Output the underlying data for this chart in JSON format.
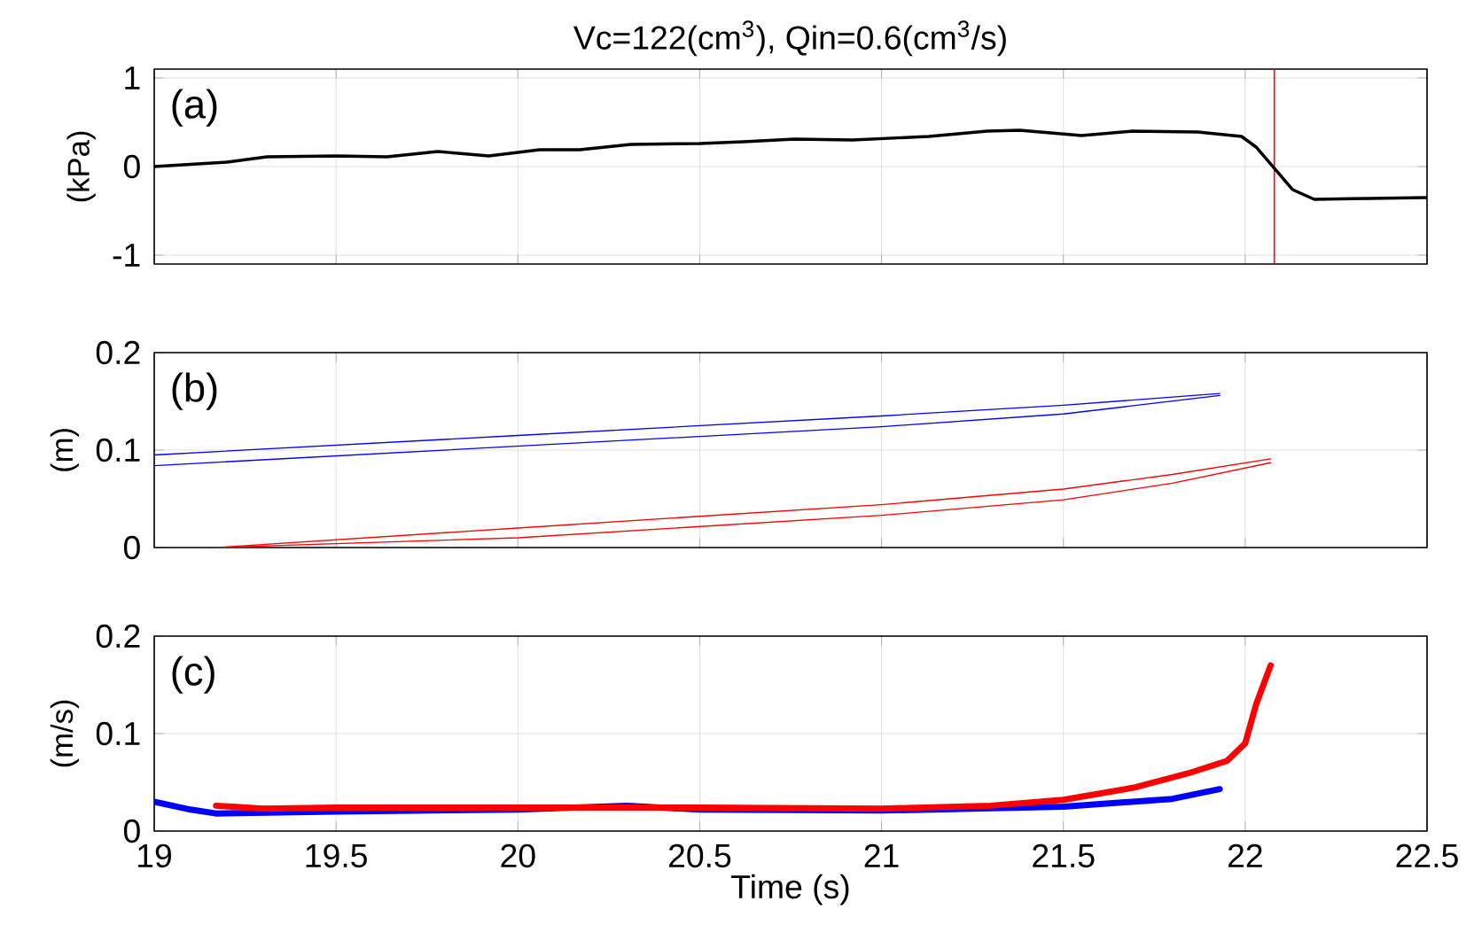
{
  "chart_data": [
    {
      "type": "line",
      "title": "Vc=122(cm$^{3}$), Qin=0.6(cm$^{3}$/s)",
      "ylabel": "(kPa)",
      "annotations": [
        "(a)"
      ],
      "grid": true,
      "tick_labels": "y",
      "xlim": [
        19,
        22.5
      ],
      "xticks": [
        19,
        19.5,
        20,
        20.5,
        21,
        21.5,
        22,
        22.5
      ],
      "ylim": [
        -1.1,
        1.1
      ],
      "yticks": [
        -1,
        0,
        1
      ],
      "ref_lines": [
        {
          "axis": "x",
          "value": 22.08,
          "color": "#ff0000"
        }
      ],
      "series": [
        {
          "color": "#000000",
          "x": [
            19,
            19.2,
            19.31,
            19.5,
            19.64,
            19.78,
            19.92,
            20.06,
            20.17,
            20.31,
            20.5,
            20.62,
            20.76,
            20.92,
            21.13,
            21.29,
            21.38,
            21.55,
            21.69,
            21.87,
            21.99,
            22.03,
            22.08,
            22.13,
            22.19,
            22.34,
            22.5
          ],
          "values": [
            0,
            0.05,
            0.11,
            0.12,
            0.11,
            0.17,
            0.12,
            0.19,
            0.19,
            0.25,
            0.26,
            0.28,
            0.31,
            0.3,
            0.34,
            0.4,
            0.41,
            0.35,
            0.4,
            0.39,
            0.34,
            0.22,
            -0.02,
            -0.26,
            -0.37,
            -0.36,
            -0.35
          ]
        }
      ]
    },
    {
      "type": "line",
      "ylabel": "(m)",
      "annotations": [
        "(b)"
      ],
      "grid": true,
      "tick_labels": "y",
      "xlim": [
        19,
        22.5
      ],
      "xticks": [
        19,
        19.5,
        20,
        20.5,
        21,
        21.5,
        22,
        22.5
      ],
      "ylim": [
        0,
        0.2
      ],
      "yticks": [
        0,
        0.1,
        0.2
      ],
      "series": [
        {
          "color": "#0000ff",
          "x": [
            19,
            20,
            21,
            21.5,
            21.93
          ],
          "values": [
            0.095,
            0.115,
            0.135,
            0.146,
            0.158
          ]
        },
        {
          "color": "#0000ff",
          "x": [
            19,
            20,
            21,
            21.5,
            21.93
          ],
          "values": [
            0.084,
            0.104,
            0.124,
            0.137,
            0.156
          ]
        },
        {
          "color": "#ff0000",
          "x": [
            19.17,
            20,
            21,
            21.5,
            21.8,
            22.07
          ],
          "values": [
            0,
            0.02,
            0.044,
            0.06,
            0.075,
            0.091
          ]
        },
        {
          "color": "#ff0000",
          "x": [
            19.17,
            20,
            21,
            21.5,
            21.8,
            22.07
          ],
          "values": [
            0,
            0.01,
            0.033,
            0.049,
            0.066,
            0.087
          ]
        }
      ]
    },
    {
      "type": "line",
      "ylabel": "(m/s)",
      "xlabel": "Time (s)",
      "annotations": [
        "(c)"
      ],
      "grid": true,
      "xlim": [
        19,
        22.5
      ],
      "xticks": [
        19,
        19.5,
        20,
        20.5,
        21,
        21.5,
        22,
        22.5
      ],
      "ylim": [
        0,
        0.2
      ],
      "yticks": [
        0,
        0.1,
        0.2
      ],
      "series": [
        {
          "color": "#0000ff",
          "x": [
            19,
            19.1,
            19.17,
            19.5,
            20,
            20.3,
            20.5,
            21,
            21.5,
            21.8,
            21.93
          ],
          "values": [
            0.03,
            0.022,
            0.018,
            0.02,
            0.022,
            0.026,
            0.022,
            0.021,
            0.025,
            0.033,
            0.043
          ]
        },
        {
          "color": "#ff0000",
          "x": [
            19.17,
            19.3,
            19.5,
            20,
            20.5,
            21,
            21.3,
            21.5,
            21.7,
            21.85,
            21.95,
            22.0,
            22.03,
            22.07
          ],
          "values": [
            0.026,
            0.023,
            0.024,
            0.024,
            0.024,
            0.023,
            0.026,
            0.032,
            0.045,
            0.06,
            0.072,
            0.09,
            0.13,
            0.17
          ]
        }
      ]
    }
  ]
}
